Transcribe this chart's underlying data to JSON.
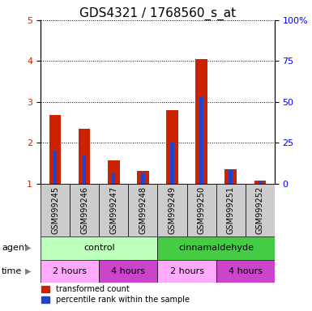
{
  "title": "GDS4321 / 1768560_s_at",
  "samples": [
    "GSM999245",
    "GSM999246",
    "GSM999247",
    "GSM999248",
    "GSM999249",
    "GSM999250",
    "GSM999251",
    "GSM999252"
  ],
  "transformed_count": [
    2.67,
    2.35,
    1.57,
    1.3,
    2.8,
    4.05,
    1.35,
    1.08
  ],
  "percentile_rank_pct": [
    20,
    17,
    6,
    6,
    25,
    53,
    8,
    2
  ],
  "bar_bottom": 1.0,
  "ylim_left": [
    1,
    5
  ],
  "ylim_right": [
    0,
    100
  ],
  "yticks_left": [
    1,
    2,
    3,
    4,
    5
  ],
  "yticks_right": [
    0,
    25,
    50,
    75,
    100
  ],
  "ytick_labels_right": [
    "0",
    "25",
    "50",
    "75",
    "100%"
  ],
  "red_color": "#cc2200",
  "blue_color": "#2244cc",
  "agent_row": [
    {
      "label": "control",
      "start": 0,
      "end": 4,
      "color": "#bbffbb"
    },
    {
      "label": "cinnamaldehyde",
      "start": 4,
      "end": 8,
      "color": "#44cc44"
    }
  ],
  "time_row": [
    {
      "label": "2 hours",
      "start": 0,
      "end": 2,
      "color": "#ffaaff"
    },
    {
      "label": "4 hours",
      "start": 2,
      "end": 4,
      "color": "#cc44cc"
    },
    {
      "label": "2 hours",
      "start": 4,
      "end": 6,
      "color": "#ffaaff"
    },
    {
      "label": "4 hours",
      "start": 6,
      "end": 8,
      "color": "#cc44cc"
    }
  ],
  "legend_red_label": "transformed count",
  "legend_blue_label": "percentile rank within the sample",
  "agent_label": "agent",
  "time_label": "time",
  "red_bar_width": 0.4,
  "blue_bar_width": 0.12,
  "sample_bg_color": "#cccccc",
  "title_fontsize": 11,
  "tick_label_fontsize": 8,
  "sample_label_fontsize": 7
}
